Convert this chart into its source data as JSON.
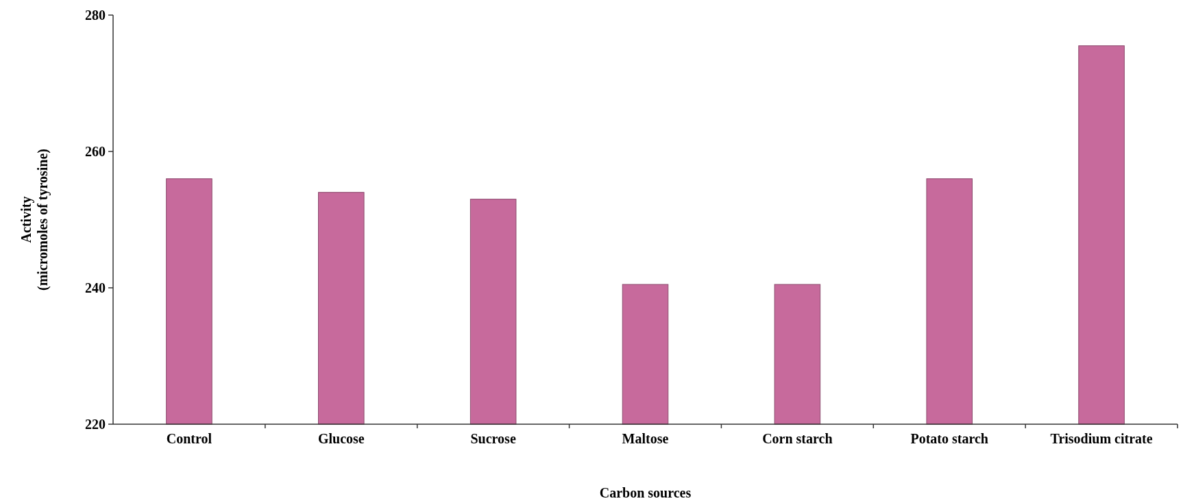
{
  "chart_data": {
    "type": "bar",
    "xlabel": "Carbon sources",
    "ylabel": "Activity\n(micromoles of tyrosine)",
    "categories": [
      "Control",
      "Glucose",
      "Sucrose",
      "Maltose",
      "Corn starch",
      "Potato starch",
      "Trisodium citrate"
    ],
    "values": [
      256,
      254,
      253,
      240.5,
      240.5,
      256,
      275.5
    ],
    "color": "#c76a9c",
    "ylim": [
      220,
      280
    ],
    "yticks": [
      220,
      240,
      260,
      280
    ],
    "grid": false
  }
}
